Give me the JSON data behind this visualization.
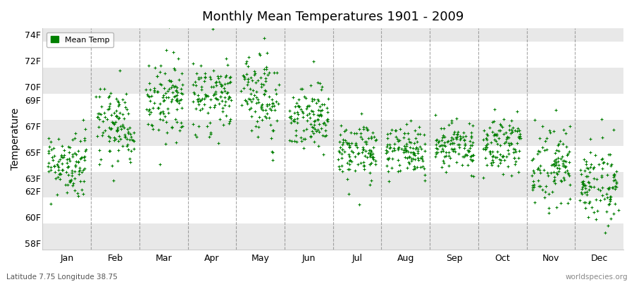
{
  "title": "Monthly Mean Temperatures 1901 - 2009",
  "ylabel": "Temperature",
  "ytick_labels": [
    "58F",
    "60F",
    "62F",
    "63F",
    "65F",
    "67F",
    "69F",
    "70F",
    "72F",
    "74F"
  ],
  "ytick_values": [
    58,
    60,
    62,
    63,
    65,
    67,
    69,
    70,
    72,
    74
  ],
  "ylim": [
    57.5,
    74.5
  ],
  "months": [
    "Jan",
    "Feb",
    "Mar",
    "Apr",
    "May",
    "Jun",
    "Jul",
    "Aug",
    "Sep",
    "Oct",
    "Nov",
    "Dec"
  ],
  "month_means": [
    64.2,
    66.8,
    69.0,
    69.3,
    69.2,
    67.8,
    65.1,
    65.2,
    65.4,
    65.6,
    63.8,
    62.8
  ],
  "month_stds": [
    1.2,
    1.3,
    1.2,
    1.1,
    1.1,
    1.0,
    0.9,
    0.9,
    0.9,
    1.0,
    1.3,
    1.2
  ],
  "month_spread": [
    2.5,
    2.8,
    3.2,
    3.0,
    2.8,
    2.2,
    2.0,
    1.8,
    1.8,
    2.0,
    3.0,
    3.5
  ],
  "dot_color": "#008000",
  "background_color": "#ffffff",
  "stripe_color": "#e8e8e8",
  "grid_color": "#808080",
  "legend_label": "Mean Temp",
  "footnote_left": "Latitude 7.75 Longitude 38.75",
  "footnote_right": "worldspecies.org",
  "n_years": 109,
  "seed": 42
}
